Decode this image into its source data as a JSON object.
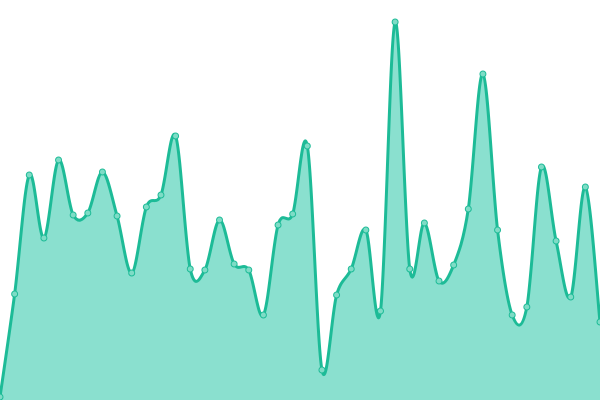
{
  "chart_data": {
    "type": "area",
    "title": "",
    "xlabel": "",
    "ylabel": "",
    "ylim": [
      0,
      400
    ],
    "grid": false,
    "legend": "none",
    "axes_visible": false,
    "smooth": true,
    "markers": true,
    "values": [
      3,
      106,
      225,
      162,
      240,
      185,
      187,
      228,
      184,
      127,
      193,
      205,
      264,
      131,
      130,
      180,
      136,
      130,
      85,
      175,
      186,
      254,
      30,
      105,
      131,
      170,
      89,
      378,
      131,
      177,
      119,
      135,
      191,
      326,
      170,
      85,
      93,
      233,
      159,
      103,
      213,
      78
    ],
    "colors": {
      "line": "#1dbb97",
      "fill": "#8ae0cf",
      "marker_fill": "#7edcc6",
      "marker_stroke": "#1dbb97"
    }
  }
}
